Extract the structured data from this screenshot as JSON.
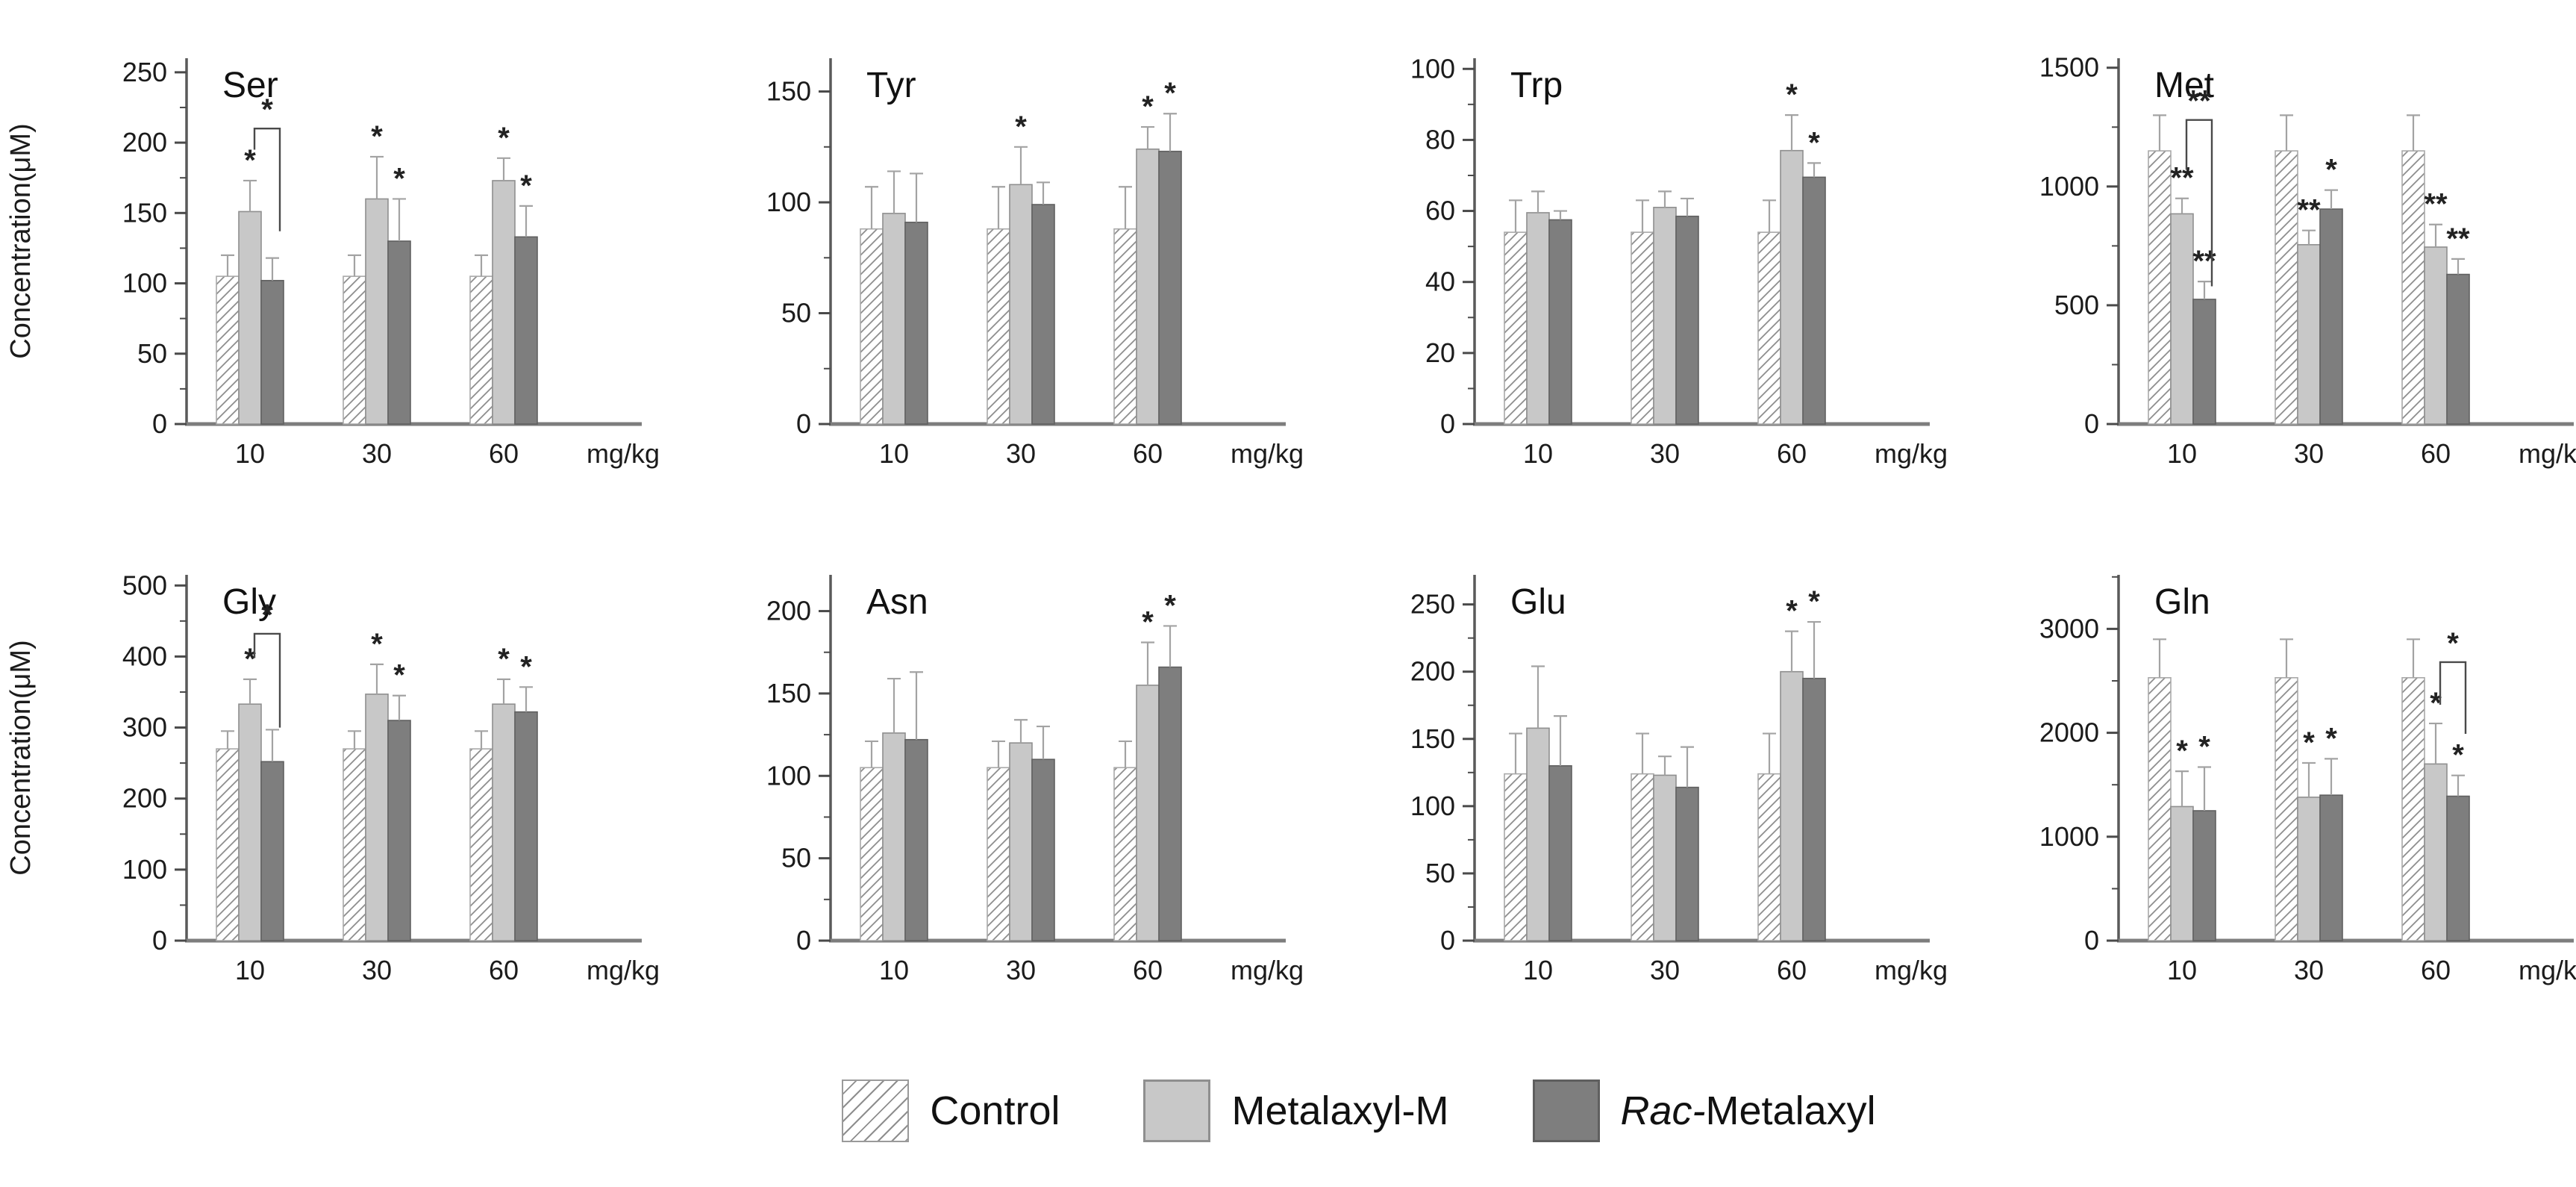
{
  "figure": {
    "y_axis_label": "Concentration(μM)",
    "x_unit": "mg/kg",
    "doses": [
      "10",
      "30",
      "60"
    ],
    "series_names": [
      "Control",
      "Metalaxyl-M",
      "Rac-Metalaxyl"
    ],
    "colors": {
      "control_fill": "#ffffff",
      "control_hatch": "#8e8e8e",
      "metalaxyl_m_fill": "#c8c8c8",
      "rac_metalaxyl_fill": "#7e7e7e",
      "error_bar": "#a3a3a3",
      "axis": "#5a5a5a",
      "baseline": "#7d7d7d",
      "text": "#1b1b1b"
    }
  },
  "legend": {
    "control": "Control",
    "metalaxyl_m": "Metalaxyl-M",
    "rac_italic": "Rac-",
    "rac_rest": "Metalaxyl"
  },
  "chart_data": [
    {
      "type": "bar",
      "title": "Ser",
      "ylabel": "Concentration(μM)",
      "show_ylabel": true,
      "ylim": [
        0,
        260
      ],
      "yticks": [
        0,
        50,
        100,
        150,
        200,
        250
      ],
      "yminor": 25,
      "categories": [
        "10",
        "30",
        "60"
      ],
      "series": [
        {
          "name": "Control",
          "values": [
            105,
            105,
            105
          ],
          "errors": [
            15,
            15,
            15
          ],
          "sig": [
            "",
            "",
            ""
          ]
        },
        {
          "name": "Metalaxyl-M",
          "values": [
            151,
            160,
            173
          ],
          "errors": [
            22,
            30,
            16
          ],
          "sig": [
            "*",
            "*",
            "*"
          ]
        },
        {
          "name": "Rac-Metalaxyl",
          "values": [
            102,
            130,
            133
          ],
          "errors": [
            16,
            30,
            22
          ],
          "sig": [
            "",
            "*",
            "*"
          ]
        }
      ],
      "brackets": [
        {
          "group": 0,
          "from": 1,
          "to": 2,
          "top": 210,
          "left_bottom": 195,
          "right_bottom": 137,
          "label": "*"
        }
      ]
    },
    {
      "type": "bar",
      "title": "Tyr",
      "show_ylabel": false,
      "ylim": [
        0,
        165
      ],
      "yticks": [
        0,
        50,
        100,
        150
      ],
      "yminor": 25,
      "categories": [
        "10",
        "30",
        "60"
      ],
      "series": [
        {
          "name": "Control",
          "values": [
            88,
            88,
            88
          ],
          "errors": [
            19,
            19,
            19
          ],
          "sig": [
            "",
            "",
            ""
          ]
        },
        {
          "name": "Metalaxyl-M",
          "values": [
            95,
            108,
            124
          ],
          "errors": [
            19,
            17,
            10
          ],
          "sig": [
            "",
            "*",
            "*"
          ]
        },
        {
          "name": "Rac-Metalaxyl",
          "values": [
            91,
            99,
            123
          ],
          "errors": [
            22,
            10,
            17
          ],
          "sig": [
            "",
            "",
            "*"
          ]
        }
      ],
      "brackets": []
    },
    {
      "type": "bar",
      "title": "Trp",
      "show_ylabel": false,
      "ylim": [
        0,
        103
      ],
      "yticks": [
        0,
        20,
        40,
        60,
        80,
        100
      ],
      "yminor": 10,
      "categories": [
        "10",
        "30",
        "60"
      ],
      "series": [
        {
          "name": "Control",
          "values": [
            54,
            54,
            54
          ],
          "errors": [
            9,
            9,
            9
          ],
          "sig": [
            "",
            "",
            ""
          ]
        },
        {
          "name": "Metalaxyl-M",
          "values": [
            59.5,
            61,
            77
          ],
          "errors": [
            6,
            4.5,
            10
          ],
          "sig": [
            "",
            "",
            "*"
          ]
        },
        {
          "name": "Rac-Metalaxyl",
          "values": [
            57.5,
            58.5,
            69.5
          ],
          "errors": [
            2.5,
            5,
            4
          ],
          "sig": [
            "",
            "",
            "*"
          ]
        }
      ],
      "brackets": []
    },
    {
      "type": "bar",
      "title": "Met",
      "show_ylabel": false,
      "ylim": [
        0,
        1540
      ],
      "yticks": [
        0,
        500,
        1000,
        1500
      ],
      "yminor": 250,
      "categories": [
        "10",
        "30",
        "60"
      ],
      "series": [
        {
          "name": "Control",
          "values": [
            1150,
            1150,
            1150
          ],
          "errors": [
            150,
            150,
            150
          ],
          "sig": [
            "",
            "",
            ""
          ]
        },
        {
          "name": "Metalaxyl-M",
          "values": [
            885,
            755,
            745
          ],
          "errors": [
            65,
            60,
            95
          ],
          "sig": [
            "**",
            "**",
            "**"
          ]
        },
        {
          "name": "Rac-Metalaxyl",
          "values": [
            525,
            905,
            630
          ],
          "errors": [
            75,
            80,
            65
          ],
          "sig": [
            "**",
            "*",
            "**"
          ]
        }
      ],
      "brackets": [
        {
          "group": 0,
          "from": 1,
          "to": 2,
          "top": 1280,
          "left_bottom": 1070,
          "right_bottom": 580,
          "label": "**"
        }
      ]
    },
    {
      "type": "bar",
      "title": "Gly",
      "ylabel": "Concentration(μM)",
      "show_ylabel": true,
      "ylim": [
        0,
        515
      ],
      "yticks": [
        0,
        100,
        200,
        300,
        400,
        500
      ],
      "yminor": 50,
      "categories": [
        "10",
        "30",
        "60"
      ],
      "series": [
        {
          "name": "Control",
          "values": [
            270,
            270,
            270
          ],
          "errors": [
            25,
            25,
            25
          ],
          "sig": [
            "",
            "",
            ""
          ]
        },
        {
          "name": "Metalaxyl-M",
          "values": [
            333,
            347,
            333
          ],
          "errors": [
            35,
            42,
            35
          ],
          "sig": [
            "*",
            "*",
            "*"
          ]
        },
        {
          "name": "Rac-Metalaxyl",
          "values": [
            252,
            310,
            322
          ],
          "errors": [
            45,
            35,
            35
          ],
          "sig": [
            "",
            "*",
            "*"
          ]
        }
      ],
      "brackets": [
        {
          "group": 0,
          "from": 1,
          "to": 2,
          "top": 432,
          "left_bottom": 398,
          "right_bottom": 300,
          "label": "*"
        }
      ]
    },
    {
      "type": "bar",
      "title": "Asn",
      "show_ylabel": false,
      "ylim": [
        0,
        222
      ],
      "yticks": [
        0,
        50,
        100,
        150,
        200
      ],
      "yminor": 25,
      "categories": [
        "10",
        "30",
        "60"
      ],
      "series": [
        {
          "name": "Control",
          "values": [
            105,
            105,
            105
          ],
          "errors": [
            16,
            16,
            16
          ],
          "sig": [
            "",
            "",
            ""
          ]
        },
        {
          "name": "Metalaxyl-M",
          "values": [
            126,
            120,
            155
          ],
          "errors": [
            33,
            14,
            26
          ],
          "sig": [
            "",
            "",
            "*"
          ]
        },
        {
          "name": "Rac-Metalaxyl",
          "values": [
            122,
            110,
            166
          ],
          "errors": [
            41,
            20,
            25
          ],
          "sig": [
            "",
            "",
            "*"
          ]
        }
      ],
      "brackets": []
    },
    {
      "type": "bar",
      "title": "Glu",
      "show_ylabel": false,
      "ylim": [
        0,
        272
      ],
      "yticks": [
        0,
        50,
        100,
        150,
        200,
        250
      ],
      "yminor": 25,
      "categories": [
        "10",
        "30",
        "60"
      ],
      "series": [
        {
          "name": "Control",
          "values": [
            124,
            124,
            124
          ],
          "errors": [
            30,
            30,
            30
          ],
          "sig": [
            "",
            "",
            ""
          ]
        },
        {
          "name": "Metalaxyl-M",
          "values": [
            158,
            123,
            200
          ],
          "errors": [
            46,
            14,
            30
          ],
          "sig": [
            "",
            "",
            "*"
          ]
        },
        {
          "name": "Rac-Metalaxyl",
          "values": [
            130,
            114,
            195
          ],
          "errors": [
            37,
            30,
            42
          ],
          "sig": [
            "",
            "",
            "*"
          ]
        }
      ],
      "brackets": []
    },
    {
      "type": "bar",
      "title": "Gln",
      "show_ylabel": false,
      "ylim": [
        0,
        3520
      ],
      "yticks": [
        0,
        1000,
        2000,
        3000
      ],
      "yminor": 500,
      "categories": [
        "10",
        "30",
        "60"
      ],
      "series": [
        {
          "name": "Control",
          "values": [
            2530,
            2530,
            2530
          ],
          "errors": [
            370,
            370,
            370
          ],
          "sig": [
            "",
            "",
            ""
          ]
        },
        {
          "name": "Metalaxyl-M",
          "values": [
            1290,
            1380,
            1700
          ],
          "errors": [
            340,
            330,
            390
          ],
          "sig": [
            "*",
            "*",
            "*"
          ]
        },
        {
          "name": "Rac-Metalaxyl",
          "values": [
            1250,
            1400,
            1390
          ],
          "errors": [
            420,
            350,
            200
          ],
          "sig": [
            "*",
            "*",
            "*"
          ]
        }
      ],
      "brackets": [
        {
          "group": 2,
          "from": 1,
          "to": 2,
          "top": 2680,
          "left_bottom": 2270,
          "right_bottom": 1990,
          "label": "*"
        }
      ]
    }
  ]
}
